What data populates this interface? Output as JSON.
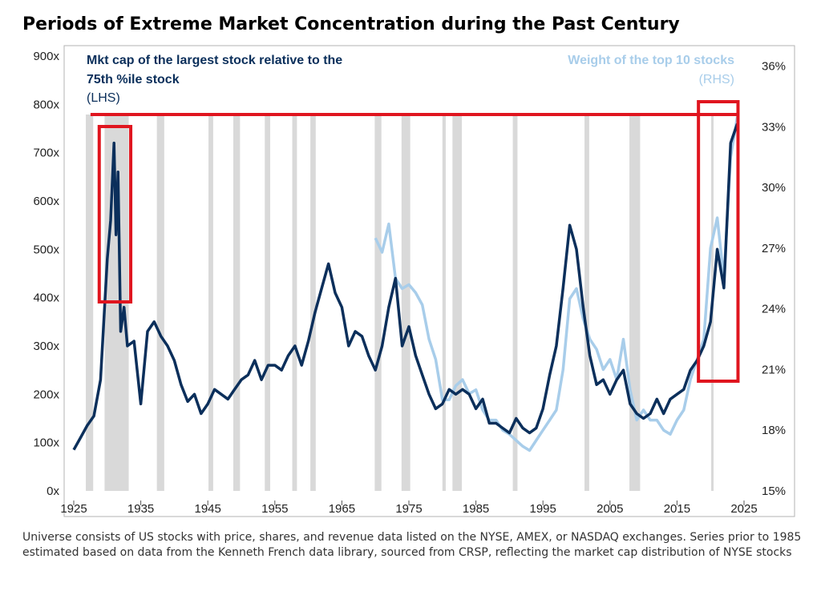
{
  "title": "Periods of Extreme Market Concentration during the Past Century",
  "footnote": "Universe consists of US stocks with price, shares, and revenue data listed on the NYSE, AMEX, or NASDAQ exchanges. Series prior to 1985 estimated based on data from the Kenneth French data library, sourced from CRSP, reflecting the market cap distribution of NYSE stocks",
  "colors": {
    "lhs": "#0b2f5b",
    "rhs": "#a8cdea",
    "recession": "#d9d9d9",
    "highlight": "#e0151f",
    "frame": "#b3b3b3"
  },
  "chart_data": {
    "type": "line",
    "xlim": [
      1925,
      2025
    ],
    "x_ticks": [
      "1925",
      "1935",
      "1945",
      "1955",
      "1965",
      "1975",
      "1985",
      "1995",
      "2005",
      "2015",
      "2025"
    ],
    "y_left": {
      "lim": [
        0,
        900
      ],
      "ticks": [
        "0x",
        "100x",
        "200x",
        "300x",
        "400x",
        "500x",
        "600x",
        "700x",
        "800x",
        "900x"
      ]
    },
    "y_right": {
      "lim": [
        15,
        36.5
      ],
      "ticks": [
        "15%",
        "18%",
        "21%",
        "24%",
        "27%",
        "30%",
        "33%",
        "36%"
      ]
    },
    "legend_lhs": [
      "Mkt cap of the largest stock relative to the",
      "75th %ile stock",
      "(LHS)"
    ],
    "legend_rhs": [
      "Weight of the top 10 stocks",
      "(RHS)"
    ],
    "recessions": [
      [
        1926.8,
        1927.9
      ],
      [
        1929.6,
        1933.2
      ],
      [
        1937.4,
        1938.5
      ],
      [
        1945.1,
        1945.8
      ],
      [
        1948.8,
        1949.8
      ],
      [
        1953.5,
        1954.3
      ],
      [
        1957.6,
        1958.3
      ],
      [
        1960.3,
        1961.1
      ],
      [
        1969.9,
        1970.9
      ],
      [
        1973.9,
        1975.2
      ],
      [
        1980.0,
        1980.5
      ],
      [
        1981.5,
        1982.9
      ],
      [
        1990.5,
        1991.2
      ],
      [
        2001.2,
        2001.9
      ],
      [
        2007.9,
        2009.5
      ],
      [
        2020.1,
        2020.4
      ]
    ],
    "series": [
      {
        "axis": "left",
        "x": [
          1925,
          1926,
          1927,
          1928,
          1929,
          1930,
          1930.5,
          1931,
          1931.3,
          1931.6,
          1932,
          1932.5,
          1933,
          1934,
          1935,
          1936,
          1937,
          1938,
          1939,
          1940,
          1941,
          1942,
          1943,
          1944,
          1945,
          1946,
          1947,
          1948,
          1949,
          1950,
          1951,
          1952,
          1953,
          1954,
          1955,
          1956,
          1957,
          1958,
          1959,
          1960,
          1961,
          1962,
          1963,
          1964,
          1965,
          1966,
          1967,
          1968,
          1969,
          1970,
          1971,
          1972,
          1973,
          1974,
          1975,
          1976,
          1977,
          1978,
          1979,
          1980,
          1981,
          1982,
          1983,
          1984,
          1985,
          1986,
          1987,
          1988,
          1989,
          1990,
          1991,
          1992,
          1993,
          1994,
          1995,
          1996,
          1997,
          1998,
          1999,
          2000,
          2001,
          2002,
          2003,
          2004,
          2005,
          2006,
          2007,
          2008,
          2009,
          2010,
          2011,
          2012,
          2013,
          2014,
          2015,
          2016,
          2017,
          2018,
          2019,
          2020,
          2021,
          2022,
          2023,
          2024
        ],
        "y": [
          85,
          110,
          135,
          155,
          230,
          480,
          560,
          720,
          530,
          660,
          330,
          380,
          300,
          310,
          180,
          330,
          350,
          320,
          300,
          270,
          220,
          185,
          200,
          160,
          180,
          210,
          200,
          190,
          210,
          230,
          240,
          270,
          230,
          260,
          260,
          250,
          280,
          300,
          260,
          310,
          370,
          420,
          470,
          410,
          380,
          300,
          330,
          320,
          280,
          250,
          300,
          380,
          440,
          300,
          340,
          280,
          240,
          200,
          170,
          180,
          210,
          200,
          210,
          200,
          170,
          190,
          140,
          140,
          130,
          120,
          150,
          130,
          120,
          130,
          170,
          240,
          300,
          420,
          550,
          500,
          380,
          280,
          220,
          230,
          200,
          230,
          250,
          180,
          160,
          150,
          160,
          190,
          160,
          190,
          200,
          210,
          250,
          270,
          300,
          350,
          500,
          420,
          720,
          760
        ]
      },
      {
        "axis": "right",
        "x": [
          1970,
          1971,
          1972,
          1973,
          1974,
          1975,
          1976,
          1977,
          1978,
          1979,
          1980,
          1981,
          1982,
          1983,
          1984,
          1985,
          1986,
          1987,
          1988,
          1989,
          1990,
          1991,
          1992,
          1993,
          1994,
          1995,
          1996,
          1997,
          1998,
          1999,
          2000,
          2001,
          2002,
          2003,
          2004,
          2005,
          2006,
          2007,
          2008,
          2009,
          2010,
          2011,
          2012,
          2013,
          2014,
          2015,
          2016,
          2017,
          2018,
          2019,
          2020,
          2021,
          2022,
          2023,
          2024
        ],
        "y": [
          27.5,
          26.8,
          28.2,
          25.5,
          25.0,
          25.2,
          24.8,
          24.2,
          22.5,
          21.5,
          19.5,
          19.5,
          20.2,
          20.5,
          19.8,
          20.0,
          19.0,
          18.5,
          18.5,
          18.0,
          17.8,
          17.5,
          17.2,
          17.0,
          17.5,
          18.0,
          18.5,
          19.0,
          21.0,
          24.5,
          25.0,
          23.5,
          22.5,
          22.0,
          21.0,
          21.5,
          20.5,
          22.5,
          20.0,
          18.5,
          19.0,
          18.5,
          18.5,
          18.0,
          17.8,
          18.5,
          19.0,
          20.5,
          21.5,
          22.5,
          27.0,
          28.5,
          25.5,
          31.5,
          33.5
        ]
      }
    ]
  }
}
